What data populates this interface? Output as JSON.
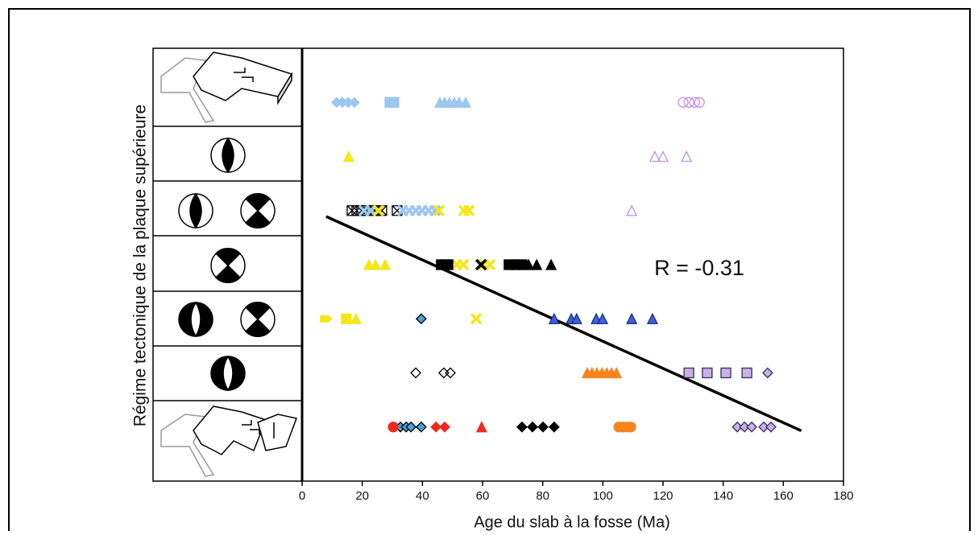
{
  "chart_data": {
    "type": "scatter",
    "xlabel": "Age du slab à la fosse (Ma)",
    "ylabel": "Régime tectonique de la plaque supérieure",
    "annotation": "R = -0.31",
    "xlim": [
      0,
      180
    ],
    "xticks": [
      0,
      20,
      40,
      60,
      80,
      100,
      120,
      140,
      160,
      180
    ],
    "ylim": [
      0,
      8
    ],
    "regression": {
      "color": "#000000",
      "x": [
        8,
        166
      ],
      "y": [
        4.89,
        0.93
      ]
    },
    "series": [
      {
        "marker": "diamond",
        "color": "#9cc8ee",
        "stroke": "#9cc8ee",
        "x": [
          11.5,
          13.4,
          15.3,
          17.4
        ],
        "y": [
          7,
          7,
          7,
          7
        ]
      },
      {
        "marker": "square",
        "color": "#9cc8ee",
        "stroke": "#9cc8ee",
        "x": [
          29.2,
          30.5
        ],
        "y": [
          7,
          7
        ]
      },
      {
        "marker": "triangle",
        "color": "#9cc8ee",
        "stroke": "#9cc8ee",
        "x": [
          45.8,
          47.4,
          49,
          50.6,
          52.2,
          54.4
        ],
        "y": [
          7,
          7,
          7,
          7,
          7,
          7
        ]
      },
      {
        "marker": "circle",
        "color": "none",
        "stroke": "#c48ee0",
        "x": [
          126.7,
          128.6,
          130.5,
          132.1
        ],
        "y": [
          7,
          7,
          7,
          7
        ]
      },
      {
        "marker": "triangle",
        "color": "#f5e617",
        "stroke": "#f5e617",
        "x": [
          15.5,
          22.2,
          24.4,
          27.6,
          17.9
        ],
        "y": [
          6,
          4,
          4,
          4,
          3
        ]
      },
      {
        "marker": "triangle",
        "color": "none",
        "stroke": "#c48ee0",
        "x": [
          117.3,
          120,
          127.8,
          109.6
        ],
        "y": [
          6,
          6,
          6,
          5
        ]
      },
      {
        "marker": "xsquare",
        "color": "none",
        "stroke": "#000000",
        "x": [
          16.6,
          18.2,
          19.8,
          21.4,
          24.1,
          26.5,
          31.6
        ],
        "y": [
          5,
          5,
          5,
          5,
          5,
          5,
          5
        ]
      },
      {
        "marker": "x",
        "color": "#9cc8ee",
        "stroke": "#9cc8ee",
        "x": [
          20.6,
          22.8,
          33.5,
          35.6,
          37.8,
          39.9,
          42.1,
          44.2
        ],
        "y": [
          5,
          5,
          5,
          5,
          5,
          5,
          5,
          5
        ]
      },
      {
        "marker": "x",
        "color": "#f5e617",
        "stroke": "#f5e617",
        "x": [
          25.4,
          45.5,
          53.8,
          55.5,
          51.4,
          53.6,
          60.3,
          62.4,
          57.9
        ],
        "y": [
          5,
          5,
          5,
          5,
          4,
          4,
          4,
          4,
          3
        ]
      },
      {
        "marker": "square",
        "color": "#000000",
        "stroke": "#000000",
        "x": [
          46.3,
          48.5,
          68.8,
          71,
          73.1
        ],
        "y": [
          4,
          4,
          4,
          4,
          4
        ]
      },
      {
        "marker": "x",
        "color": "#000000",
        "stroke": "#000000",
        "x": [
          47.7,
          59.5
        ],
        "y": [
          4,
          4
        ]
      },
      {
        "marker": "triangle",
        "color": "#000000",
        "stroke": "#000000",
        "x": [
          75.3,
          78,
          82.8
        ],
        "y": [
          4,
          4,
          4
        ]
      },
      {
        "marker": "arrow",
        "color": "#f5e617",
        "stroke": "#f5e617",
        "x": [
          8
        ],
        "y": [
          3
        ]
      },
      {
        "marker": "square",
        "color": "#f5e617",
        "stroke": "#f5e617",
        "x": [
          14.7
        ],
        "y": [
          3
        ]
      },
      {
        "marker": "diamond",
        "color": "#4aa3d8",
        "stroke": "#000000",
        "x": [
          39.6,
          32.7,
          34.6,
          36.2,
          39.6
        ],
        "y": [
          3,
          1,
          1,
          1,
          1
        ]
      },
      {
        "marker": "triangle",
        "color": "#3a62e0",
        "stroke": "#1a2a80",
        "x": [
          83.8,
          89.5,
          91.3,
          97.8,
          99.9,
          109.6,
          116.5
        ],
        "y": [
          3,
          3,
          3,
          3,
          3,
          3,
          3
        ]
      },
      {
        "marker": "diamond",
        "color": "none",
        "stroke": "#000000",
        "x": [
          37.8,
          47.1,
          49.3
        ],
        "y": [
          2,
          2,
          2
        ]
      },
      {
        "marker": "triangle",
        "color": "#f7841f",
        "stroke": "#f7841f",
        "x": [
          94.8,
          96.4,
          98,
          99.7,
          101.3,
          102.9,
          104.5
        ],
        "y": [
          2,
          2,
          2,
          2,
          2,
          2,
          2
        ]
      },
      {
        "marker": "square",
        "color": "#c6b2e6",
        "stroke": "#3a2a60",
        "x": [
          128.6,
          134.7,
          140.9,
          147.9
        ],
        "y": [
          2,
          2,
          2,
          2
        ]
      },
      {
        "marker": "diamond",
        "color": "#c6b2e6",
        "stroke": "#3a2a60",
        "x": [
          154.8,
          144.7,
          147.1,
          149.5,
          153.5,
          155.9
        ],
        "y": [
          2,
          1,
          1,
          1,
          1,
          1
        ]
      },
      {
        "marker": "circle",
        "color": "#ee2a1c",
        "stroke": "#ee2a1c",
        "x": [
          30.3
        ],
        "y": [
          1
        ]
      },
      {
        "marker": "diamond",
        "color": "#ee2a1c",
        "stroke": "#ee2a1c",
        "x": [
          44.5,
          47.4
        ],
        "y": [
          1,
          1
        ]
      },
      {
        "marker": "triangle",
        "color": "#ee2a1c",
        "stroke": "#ee2a1c",
        "x": [
          59.7
        ],
        "y": [
          1
        ]
      },
      {
        "marker": "diamond",
        "color": "#000000",
        "stroke": "#000000",
        "x": [
          73.1,
          76.6,
          80.1,
          83.8
        ],
        "y": [
          1,
          1,
          1,
          1
        ]
      },
      {
        "marker": "circle",
        "color": "#f7841f",
        "stroke": "#f7841f",
        "x": [
          105.3,
          106.6,
          108,
          109.3
        ],
        "y": [
          1,
          1,
          1,
          1
        ]
      }
    ]
  }
}
